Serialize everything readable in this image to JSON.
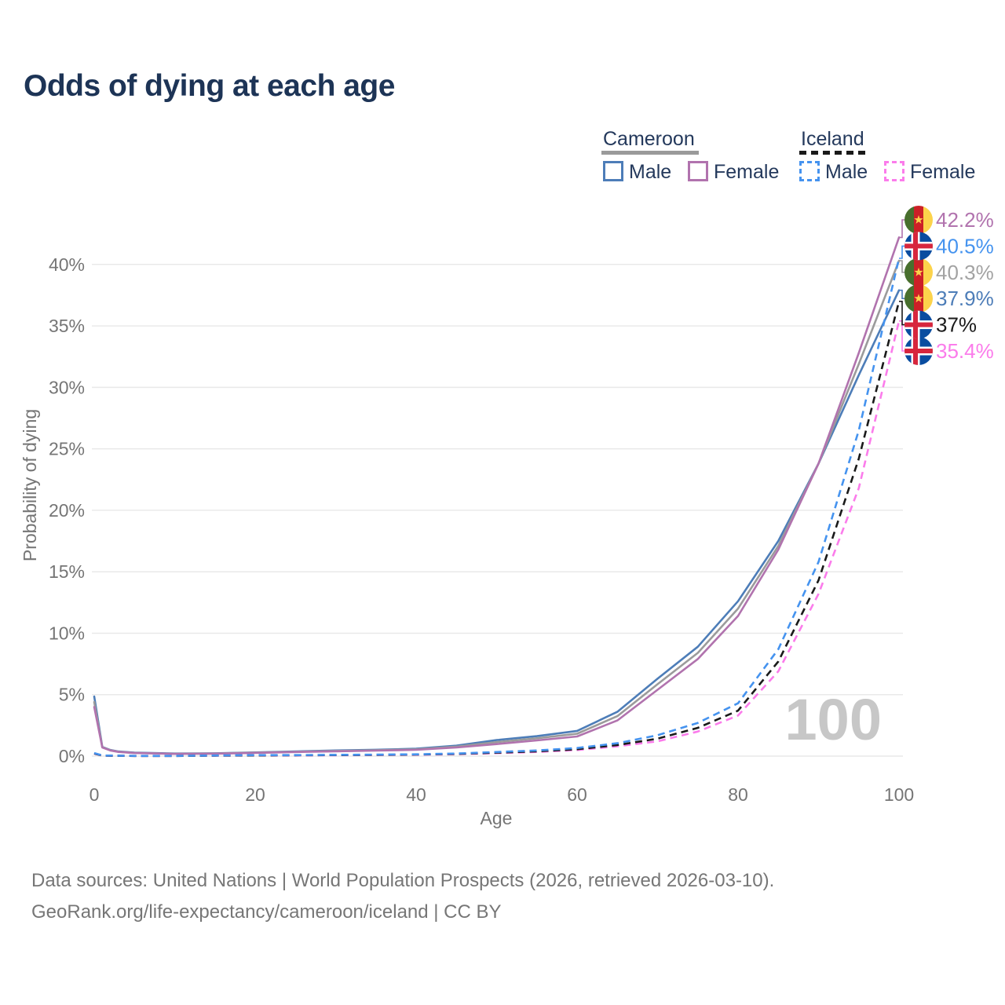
{
  "title": "Odds of dying at each age",
  "legend": {
    "groups": [
      {
        "label": "Cameroon",
        "line_style": "solid",
        "line_color": "#9a9a9a",
        "items": [
          {
            "label": "Male",
            "color": "#4d7db8",
            "dash": false
          },
          {
            "label": "Female",
            "color": "#b173ae",
            "dash": false
          }
        ]
      },
      {
        "label": "Iceland",
        "line_style": "dashed",
        "line_color": "#1a1a1a",
        "items": [
          {
            "label": "Male",
            "color": "#4593ef",
            "dash": true
          },
          {
            "label": "Female",
            "color": "#fb7ceb",
            "dash": true
          }
        ]
      }
    ]
  },
  "footer": {
    "line1": "Data sources: United Nations | World Population Prospects (2026, retrieved 2026-03-10).",
    "line2": "GeoRank.org/life-expectancy/cameroon/iceland | CC BY"
  },
  "chart_data": {
    "type": "line",
    "title": "Odds of dying at each age",
    "xlabel": "Age",
    "ylabel": "Probability of dying",
    "xlim": [
      0,
      100
    ],
    "ylim_pct": [
      0,
      44
    ],
    "grid": true,
    "watermark": "100",
    "x_ticks": [
      0,
      20,
      40,
      60,
      80,
      100
    ],
    "y_ticks": [
      {
        "value": 0,
        "label": "0%"
      },
      {
        "value": 5,
        "label": "5%"
      },
      {
        "value": 10,
        "label": "10%"
      },
      {
        "value": 15,
        "label": "15%"
      },
      {
        "value": 20,
        "label": "20%"
      },
      {
        "value": 25,
        "label": "25%"
      },
      {
        "value": 30,
        "label": "30%"
      },
      {
        "value": 35,
        "label": "35%"
      },
      {
        "value": 40,
        "label": "40%"
      }
    ],
    "series": [
      {
        "name": "Cameroon Male",
        "country": "Cameroon",
        "sex": "Male",
        "color": "#4d7db8",
        "dash": false,
        "end_label": {
          "text": "37.9%",
          "row": 3,
          "color": "#4d7db8"
        },
        "points": [
          [
            0,
            4.85
          ],
          [
            1,
            0.75
          ],
          [
            2,
            0.5
          ],
          [
            3,
            0.38
          ],
          [
            5,
            0.28
          ],
          [
            10,
            0.21
          ],
          [
            15,
            0.23
          ],
          [
            20,
            0.3
          ],
          [
            25,
            0.38
          ],
          [
            30,
            0.46
          ],
          [
            35,
            0.52
          ],
          [
            40,
            0.6
          ],
          [
            45,
            0.85
          ],
          [
            50,
            1.3
          ],
          [
            55,
            1.62
          ],
          [
            60,
            2.05
          ],
          [
            65,
            3.6
          ],
          [
            70,
            6.3
          ],
          [
            75,
            8.9
          ],
          [
            80,
            12.6
          ],
          [
            85,
            17.5
          ],
          [
            90,
            23.8
          ],
          [
            95,
            31.0
          ],
          [
            100,
            37.9
          ]
        ]
      },
      {
        "name": "Cameroon (both sexes)",
        "country": "Cameroon",
        "sex": "Both",
        "color": "#9b9b9b",
        "dash": false,
        "end_label": {
          "text": "40.3%",
          "row": 2,
          "color": "#a3a3a3"
        },
        "points": [
          [
            0,
            4.4
          ],
          [
            1,
            0.72
          ],
          [
            2,
            0.48
          ],
          [
            3,
            0.36
          ],
          [
            5,
            0.26
          ],
          [
            10,
            0.19
          ],
          [
            15,
            0.21
          ],
          [
            20,
            0.28
          ],
          [
            25,
            0.35
          ],
          [
            30,
            0.42
          ],
          [
            35,
            0.48
          ],
          [
            40,
            0.55
          ],
          [
            45,
            0.77
          ],
          [
            50,
            1.14
          ],
          [
            55,
            1.45
          ],
          [
            60,
            1.82
          ],
          [
            65,
            3.25
          ],
          [
            70,
            5.85
          ],
          [
            75,
            8.4
          ],
          [
            80,
            12.0
          ],
          [
            85,
            17.1
          ],
          [
            90,
            23.8
          ],
          [
            95,
            31.9
          ],
          [
            100,
            40.3
          ]
        ]
      },
      {
        "name": "Cameroon Female",
        "country": "Cameroon",
        "sex": "Female",
        "color": "#b173ae",
        "dash": false,
        "end_label": {
          "text": "42.2%",
          "row": 0,
          "color": "#b173ae"
        },
        "points": [
          [
            0,
            4.0
          ],
          [
            1,
            0.7
          ],
          [
            2,
            0.46
          ],
          [
            3,
            0.34
          ],
          [
            5,
            0.25
          ],
          [
            10,
            0.18
          ],
          [
            15,
            0.2
          ],
          [
            20,
            0.26
          ],
          [
            25,
            0.33
          ],
          [
            30,
            0.39
          ],
          [
            35,
            0.45
          ],
          [
            40,
            0.51
          ],
          [
            45,
            0.7
          ],
          [
            50,
            0.98
          ],
          [
            55,
            1.28
          ],
          [
            60,
            1.6
          ],
          [
            65,
            2.9
          ],
          [
            70,
            5.4
          ],
          [
            75,
            7.9
          ],
          [
            80,
            11.4
          ],
          [
            85,
            16.8
          ],
          [
            90,
            23.8
          ],
          [
            95,
            32.8
          ],
          [
            100,
            42.2
          ]
        ]
      },
      {
        "name": "Iceland Female",
        "country": "Iceland",
        "sex": "Female",
        "color": "#fb7ceb",
        "dash": true,
        "end_label": {
          "text": "35.4%",
          "row": 5,
          "color": "#fb7ceb"
        },
        "points": [
          [
            0,
            0.2
          ],
          [
            1,
            0.04
          ],
          [
            5,
            0.015
          ],
          [
            10,
            0.015
          ],
          [
            15,
            0.03
          ],
          [
            20,
            0.05
          ],
          [
            25,
            0.06
          ],
          [
            30,
            0.07
          ],
          [
            35,
            0.09
          ],
          [
            40,
            0.11
          ],
          [
            45,
            0.16
          ],
          [
            50,
            0.24
          ],
          [
            55,
            0.34
          ],
          [
            60,
            0.49
          ],
          [
            65,
            0.8
          ],
          [
            70,
            1.2
          ],
          [
            75,
            2.0
          ],
          [
            80,
            3.3
          ],
          [
            85,
            6.9
          ],
          [
            90,
            13.2
          ],
          [
            95,
            21.8
          ],
          [
            100,
            35.4
          ]
        ]
      },
      {
        "name": "Iceland (both sexes)",
        "country": "Iceland",
        "sex": "Both",
        "color": "#1a1a1a",
        "dash": true,
        "end_label": {
          "text": "37%",
          "row": 4,
          "color": "#1a1a1a"
        },
        "points": [
          [
            0,
            0.22
          ],
          [
            1,
            0.04
          ],
          [
            5,
            0.015
          ],
          [
            10,
            0.015
          ],
          [
            15,
            0.04
          ],
          [
            20,
            0.06
          ],
          [
            25,
            0.07
          ],
          [
            30,
            0.08
          ],
          [
            35,
            0.1
          ],
          [
            40,
            0.13
          ],
          [
            45,
            0.18
          ],
          [
            50,
            0.28
          ],
          [
            55,
            0.39
          ],
          [
            60,
            0.56
          ],
          [
            65,
            0.9
          ],
          [
            70,
            1.42
          ],
          [
            75,
            2.3
          ],
          [
            80,
            3.7
          ],
          [
            85,
            7.7
          ],
          [
            90,
            14.3
          ],
          [
            95,
            24.2
          ],
          [
            100,
            37.0
          ]
        ]
      },
      {
        "name": "Iceland Male",
        "country": "Iceland",
        "sex": "Male",
        "color": "#4593ef",
        "dash": true,
        "end_label": {
          "text": "40.5%",
          "row": 1,
          "color": "#4593ef"
        },
        "points": [
          [
            0,
            0.25
          ],
          [
            1,
            0.05
          ],
          [
            5,
            0.02
          ],
          [
            10,
            0.02
          ],
          [
            15,
            0.05
          ],
          [
            20,
            0.08
          ],
          [
            25,
            0.08
          ],
          [
            30,
            0.1
          ],
          [
            35,
            0.12
          ],
          [
            40,
            0.15
          ],
          [
            45,
            0.21
          ],
          [
            50,
            0.33
          ],
          [
            55,
            0.46
          ],
          [
            60,
            0.66
          ],
          [
            65,
            1.05
          ],
          [
            70,
            1.7
          ],
          [
            75,
            2.7
          ],
          [
            80,
            4.3
          ],
          [
            85,
            8.7
          ],
          [
            90,
            15.8
          ],
          [
            95,
            26.5
          ],
          [
            100,
            40.5
          ]
        ]
      }
    ],
    "colors": {
      "grid": "#e9e9e9",
      "axis_text": "#757575",
      "watermark": "#c7c7c7",
      "cameroon_flag": {
        "green": "#486f2d",
        "red": "#cc2027",
        "yellow": "#fcd34b"
      },
      "iceland_flag": {
        "blue": "#0a4da0",
        "white": "#ffffff",
        "red": "#d7263d"
      }
    }
  }
}
